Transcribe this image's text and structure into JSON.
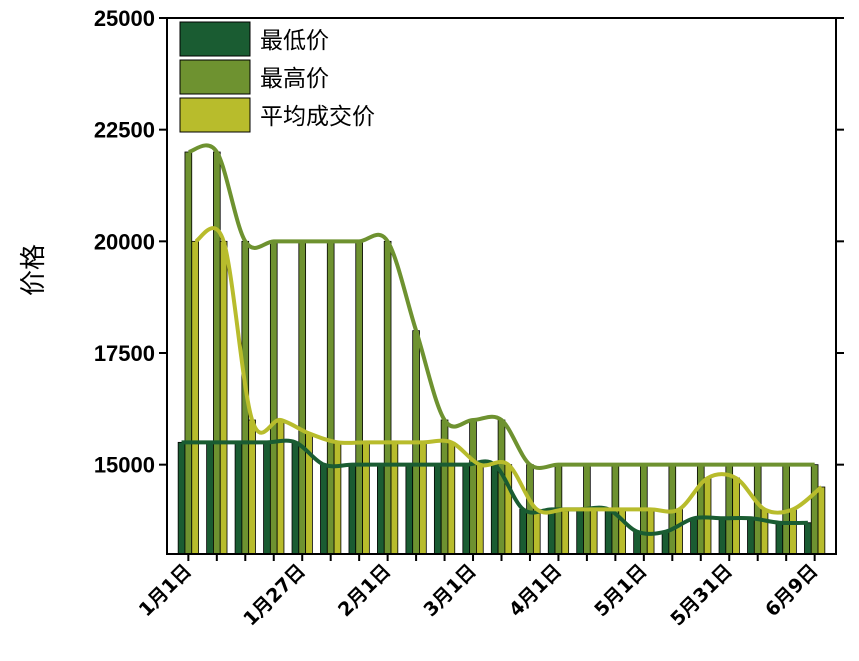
{
  "chart_data": {
    "type": "bar",
    "ylabel": "价格",
    "xlabel": "",
    "ylim": [
      13000,
      25000
    ],
    "yticks": [
      15000,
      17500,
      20000,
      22500,
      25000
    ],
    "ytick_labels": [
      "15000",
      "17500",
      "20000",
      "22500",
      "25000"
    ],
    "xtick_labels": [
      "1月1日",
      "1月27日",
      "2月1日",
      "3月1日",
      "4月1日",
      "5月1日",
      "5月31日",
      "6月9日"
    ],
    "xtick_positions": [
      1,
      5,
      8,
      11,
      14,
      17,
      20,
      23
    ],
    "categories": [
      "1",
      "2",
      "3",
      "4",
      "5",
      "6",
      "7",
      "8",
      "9",
      "10",
      "11",
      "12",
      "13",
      "14",
      "15",
      "16",
      "17",
      "18",
      "19",
      "20",
      "21",
      "22",
      "23"
    ],
    "series": [
      {
        "name": "最低价",
        "color": "#1a5c32",
        "values": [
          15500,
          15500,
          15500,
          15500,
          15500,
          15000,
          15000,
          15000,
          15000,
          15000,
          15000,
          15000,
          14000,
          14000,
          14000,
          14000,
          13500,
          13500,
          13800,
          13800,
          13800,
          13700,
          13700
        ]
      },
      {
        "name": "最高价",
        "color": "#6e9230",
        "values": [
          22000,
          22000,
          20000,
          20000,
          20000,
          20000,
          20000,
          20000,
          18000,
          16000,
          16000,
          16000,
          15000,
          15000,
          15000,
          15000,
          15000,
          15000,
          15000,
          15000,
          15000,
          15000,
          15000
        ]
      },
      {
        "name": "平均成交价",
        "color": "#b8bc2c",
        "values": [
          20000,
          20000,
          16000,
          16000,
          15700,
          15500,
          15500,
          15500,
          15500,
          15500,
          15000,
          15000,
          14000,
          14000,
          14000,
          14000,
          14000,
          14000,
          14700,
          14700,
          14000,
          14000,
          14500
        ]
      }
    ],
    "legend_position": "top-left",
    "grid": false
  }
}
